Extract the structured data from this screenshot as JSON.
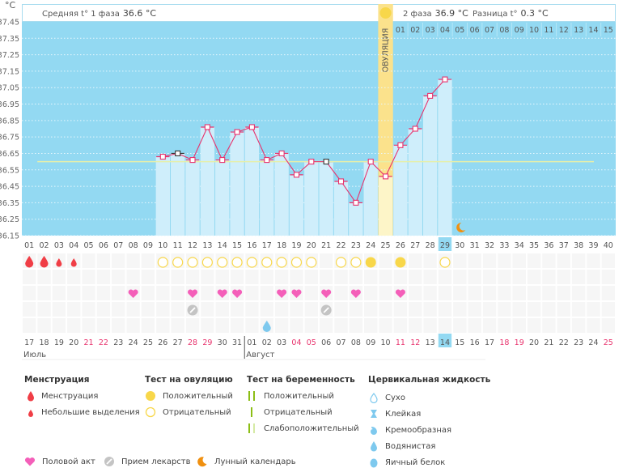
{
  "unit_label": "°C",
  "header": {
    "phase1_label": "Средняя t° 1 фаза",
    "phase1_value": "36.6 °C",
    "phase2_label": "2 фаза",
    "phase2_value": "36.9 °C",
    "diff_label": "Разница t°",
    "diff_value": "0.3 °C",
    "ovulation_label": "ОВУЛЯЦИЯ"
  },
  "colors": {
    "chart_bg": "#93d9f2",
    "bar_fill": "#cfeefb",
    "line": "#e8336d",
    "coverline": "#e6efaa",
    "ovulation": "#fbe28c",
    "highlight": "#93d9f2",
    "red_date": "#e8336d",
    "menstruation": "#f03e46",
    "heart": "#f45fb9",
    "pill": "#c4c4c4",
    "moon": "#f09010",
    "lh_ring": "#f8d74a",
    "lh_fill": "#f8d74a",
    "preg_green": "#8cbe16",
    "preg_light": "#d5eaa4",
    "cervical": "#7ec9ee"
  },
  "chart_data": {
    "type": "bar",
    "title": "",
    "xlabel": "",
    "ylabel": "°C",
    "ylim": [
      36.15,
      37.45
    ],
    "yticks": [
      "37.45",
      "37.35",
      "37.25",
      "37.15",
      "37.05",
      "36.95",
      "36.85",
      "36.75",
      "36.65",
      "36.55",
      "36.45",
      "36.35",
      "36.25",
      "36.15"
    ],
    "grid": true,
    "coverline": 36.6,
    "ovulation_day": 25,
    "cycle_days": [
      "01",
      "02",
      "03",
      "04",
      "05",
      "06",
      "07",
      "08",
      "09",
      "10",
      "11",
      "12",
      "13",
      "14",
      "15",
      "16",
      "17",
      "18",
      "19",
      "20",
      "21",
      "22",
      "23",
      "24",
      "25",
      "26",
      "27",
      "28",
      "29",
      "30",
      "31",
      "32",
      "33",
      "34",
      "35",
      "36",
      "37",
      "38",
      "39",
      "40"
    ],
    "today_day": 29,
    "series": [
      {
        "name": "Базальная температура",
        "days": [
          10,
          11,
          12,
          13,
          14,
          15,
          16,
          17,
          18,
          19,
          20,
          21,
          22,
          23,
          24,
          25,
          26,
          27,
          28,
          29
        ],
        "values": [
          36.63,
          36.65,
          36.61,
          36.81,
          36.61,
          36.78,
          36.81,
          36.61,
          36.65,
          36.52,
          36.6,
          36.6,
          36.48,
          36.35,
          36.6,
          36.51,
          36.7,
          36.8,
          37.0,
          37.1
        ],
        "marked_black": [
          11,
          21
        ]
      }
    ],
    "phase2_header_days": [
      "01",
      "02",
      "03",
      "04",
      "05",
      "06",
      "07",
      "08",
      "09",
      "10",
      "11",
      "12",
      "13",
      "14",
      "15"
    ],
    "calendar_dates": [
      "17",
      "18",
      "19",
      "20",
      "21",
      "22",
      "23",
      "24",
      "25",
      "26",
      "27",
      "28",
      "29",
      "30",
      "31",
      "01",
      "02",
      "03",
      "04",
      "05",
      "06",
      "07",
      "08",
      "09",
      "10",
      "11",
      "12",
      "13",
      "14",
      "15",
      "16",
      "17",
      "18",
      "19",
      "20",
      "21",
      "22",
      "23",
      "24",
      "25"
    ],
    "red_dates_index": [
      5,
      6,
      12,
      13,
      19,
      20,
      26,
      27,
      33,
      34,
      40
    ],
    "today_date": "14",
    "months": [
      {
        "label": "Июль",
        "start_index": 1
      },
      {
        "label": "Август",
        "start_index": 16
      }
    ],
    "symptoms": {
      "menstruation": [
        {
          "day": 1,
          "type": "heavy"
        },
        {
          "day": 2,
          "type": "heavy"
        },
        {
          "day": 3,
          "type": "light"
        },
        {
          "day": 4,
          "type": "light"
        }
      ],
      "ovulation_test": [
        {
          "day": 10,
          "result": "negative"
        },
        {
          "day": 11,
          "result": "negative"
        },
        {
          "day": 12,
          "result": "negative"
        },
        {
          "day": 13,
          "result": "negative"
        },
        {
          "day": 14,
          "result": "negative"
        },
        {
          "day": 15,
          "result": "negative"
        },
        {
          "day": 16,
          "result": "negative"
        },
        {
          "day": 17,
          "result": "negative"
        },
        {
          "day": 18,
          "result": "negative"
        },
        {
          "day": 19,
          "result": "negative"
        },
        {
          "day": 20,
          "result": "negative"
        },
        {
          "day": 22,
          "result": "negative"
        },
        {
          "day": 23,
          "result": "negative"
        },
        {
          "day": 24,
          "result": "positive"
        },
        {
          "day": 26,
          "result": "positive"
        },
        {
          "day": 29,
          "result": "negative"
        }
      ],
      "intercourse": [
        8,
        12,
        14,
        15,
        18,
        19,
        21,
        23,
        26
      ],
      "medication": [
        12,
        21
      ],
      "cervical_fluid": [
        {
          "day": 17,
          "type": "watery"
        }
      ],
      "moon": [
        30
      ]
    }
  },
  "legend": {
    "menstruation": {
      "title": "Менструация",
      "items": [
        "Менструация",
        "Небольшие выделения"
      ]
    },
    "ovulation_test": {
      "title": "Тест на овуляцию",
      "items": [
        "Положительный",
        "Отрицательный"
      ]
    },
    "pregnancy_test": {
      "title": "Тест на беременность",
      "items": [
        "Положительный",
        "Отрицательный",
        "Слабоположительный"
      ]
    },
    "cervical": {
      "title": "Цервикальная жидкость",
      "items": [
        "Сухо",
        "Клейкая",
        "Кремообразная",
        "Водянистая",
        "Яичный белок"
      ]
    },
    "other": [
      "Половой акт",
      "Прием лекарств",
      "Лунный календарь"
    ]
  }
}
